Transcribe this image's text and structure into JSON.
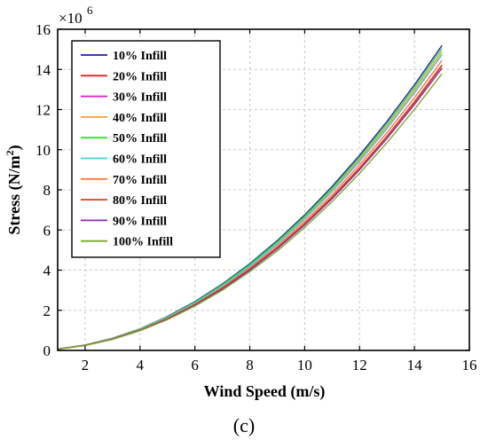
{
  "chart_data": {
    "type": "line",
    "title": "",
    "xlabel": "Wind Speed (m/s)",
    "ylabel": "Stress (N/m²)",
    "y_multiplier": "×10^6",
    "xlim": [
      1,
      16
    ],
    "ylim": [
      0,
      16
    ],
    "xticks": [
      2,
      4,
      6,
      8,
      10,
      12,
      14,
      16
    ],
    "yticks": [
      0,
      2,
      4,
      6,
      8,
      10,
      12,
      14,
      16
    ],
    "grid": true,
    "legend_position": "top-left",
    "x": [
      1,
      2,
      3,
      4,
      5,
      6,
      7,
      8,
      9,
      10,
      11,
      12,
      13,
      14,
      15
    ],
    "series": [
      {
        "name": "10% Infill",
        "color": "#1f1fb8",
        "values": [
          0.07,
          0.27,
          0.61,
          1.08,
          1.69,
          2.43,
          3.31,
          4.32,
          5.47,
          6.75,
          8.17,
          9.72,
          11.41,
          13.23,
          15.19
        ]
      },
      {
        "name": "20% Infill",
        "color": "#e02020",
        "values": [
          0.06,
          0.25,
          0.57,
          1.01,
          1.58,
          2.27,
          3.09,
          4.04,
          5.11,
          6.31,
          7.63,
          9.08,
          10.66,
          12.36,
          14.19
        ]
      },
      {
        "name": "30% Infill",
        "color": "#e01ec8",
        "values": [
          0.07,
          0.26,
          0.59,
          1.05,
          1.64,
          2.36,
          3.21,
          4.19,
          5.3,
          6.54,
          7.92,
          9.42,
          11.06,
          12.83,
          14.73
        ]
      },
      {
        "name": "40% Infill",
        "color": "#f2a22c",
        "values": [
          0.07,
          0.26,
          0.6,
          1.06,
          1.65,
          2.38,
          3.24,
          4.23,
          5.36,
          6.61,
          8.0,
          9.52,
          11.17,
          12.96,
          14.88
        ]
      },
      {
        "name": "50% Infill",
        "color": "#2ee02e",
        "values": [
          0.07,
          0.27,
          0.6,
          1.07,
          1.67,
          2.4,
          3.27,
          4.27,
          5.41,
          6.68,
          8.08,
          9.62,
          11.29,
          13.09,
          15.03
        ]
      },
      {
        "name": "60% Infill",
        "color": "#3fd0e8",
        "values": [
          0.07,
          0.26,
          0.59,
          1.05,
          1.64,
          2.36,
          3.21,
          4.19,
          5.31,
          6.55,
          7.93,
          9.43,
          11.07,
          12.84,
          14.74
        ]
      },
      {
        "name": "70% Infill",
        "color": "#ff7a3a",
        "values": [
          0.06,
          0.26,
          0.58,
          1.03,
          1.61,
          2.31,
          3.15,
          4.11,
          5.2,
          6.42,
          7.77,
          9.25,
          10.85,
          12.59,
          14.45
        ]
      },
      {
        "name": "80% Infill",
        "color": "#e03a1e",
        "values": [
          0.06,
          0.25,
          0.57,
          1.01,
          1.58,
          2.28,
          3.1,
          4.05,
          5.12,
          6.32,
          7.65,
          9.1,
          10.68,
          12.39,
          14.22
        ]
      },
      {
        "name": "90% Infill",
        "color": "#8a2ea8",
        "values": [
          0.06,
          0.25,
          0.56,
          1.0,
          1.56,
          2.25,
          3.06,
          4.0,
          5.06,
          6.25,
          7.56,
          9.0,
          10.56,
          12.25,
          14.06
        ]
      },
      {
        "name": "100% Infill",
        "color": "#7aa82e",
        "values": [
          0.06,
          0.24,
          0.55,
          0.98,
          1.53,
          2.21,
          3.0,
          3.92,
          4.96,
          6.13,
          7.41,
          8.82,
          10.35,
          12.01,
          13.78
        ]
      }
    ]
  },
  "caption": "(c)"
}
